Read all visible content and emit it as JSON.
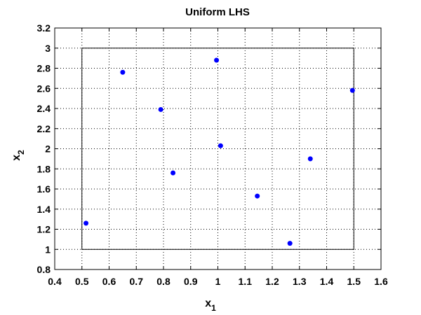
{
  "chart_data": {
    "type": "scatter",
    "title": "Uniform LHS",
    "xlabel": "x",
    "xlabel_sub": "1",
    "ylabel": "x",
    "ylabel_sub": "2",
    "xlim": [
      0.4,
      1.6
    ],
    "ylim": [
      0.8,
      3.2
    ],
    "x_ticks": [
      0.4,
      0.5,
      0.6,
      0.7,
      0.8,
      0.9,
      1,
      1.1,
      1.2,
      1.3,
      1.4,
      1.5,
      1.6
    ],
    "y_ticks": [
      0.8,
      1,
      1.2,
      1.4,
      1.6,
      1.8,
      2,
      2.2,
      2.4,
      2.6,
      2.8,
      3,
      3.2
    ],
    "x_tick_labels": [
      "0.4",
      "0.5",
      "0.6",
      "0.7",
      "0.8",
      "0.9",
      "1",
      "1.1",
      "1.2",
      "1.3",
      "1.4",
      "1.5",
      "1.6"
    ],
    "y_tick_labels": [
      "0.8",
      "1",
      "1.2",
      "1.4",
      "1.6",
      "1.8",
      "2",
      "2.2",
      "2.4",
      "2.6",
      "2.8",
      "3",
      "3.2"
    ],
    "grid": true,
    "bounding_box": {
      "x": [
        0.5,
        1.5
      ],
      "y": [
        1.0,
        3.0
      ]
    },
    "series": [
      {
        "color": "#0000ff",
        "marker": "dot",
        "points": [
          {
            "x": 0.515,
            "y": 1.26
          },
          {
            "x": 0.65,
            "y": 2.76
          },
          {
            "x": 0.79,
            "y": 2.39
          },
          {
            "x": 0.835,
            "y": 1.76
          },
          {
            "x": 0.995,
            "y": 2.88
          },
          {
            "x": 1.01,
            "y": 2.03
          },
          {
            "x": 1.145,
            "y": 1.53
          },
          {
            "x": 1.265,
            "y": 1.06
          },
          {
            "x": 1.34,
            "y": 1.9
          },
          {
            "x": 1.495,
            "y": 2.58
          }
        ]
      }
    ]
  }
}
